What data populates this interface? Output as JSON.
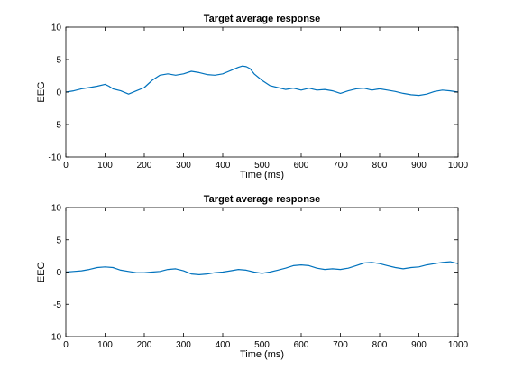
{
  "colors": {
    "series": "#0072bd",
    "axes": "#000000",
    "background": "#ffffff"
  },
  "chart_data": [
    {
      "type": "line",
      "title": "Target average response",
      "xlabel": "Time (ms)",
      "ylabel": "EEG",
      "xlim": [
        0,
        1000
      ],
      "ylim": [
        -10,
        10
      ],
      "xticks": [
        0,
        100,
        200,
        300,
        400,
        500,
        600,
        700,
        800,
        900,
        1000
      ],
      "yticks": [
        -10,
        -5,
        0,
        5,
        10
      ],
      "grid": false,
      "series": [
        {
          "x": [
            0,
            20,
            40,
            60,
            80,
            100,
            110,
            120,
            140,
            160,
            180,
            200,
            220,
            240,
            260,
            280,
            300,
            320,
            340,
            360,
            380,
            400,
            420,
            440,
            450,
            460,
            470,
            480,
            500,
            520,
            540,
            560,
            580,
            600,
            620,
            640,
            660,
            680,
            700,
            720,
            740,
            760,
            780,
            800,
            820,
            840,
            860,
            880,
            900,
            920,
            940,
            960,
            980,
            1000
          ],
          "y": [
            0.0,
            0.2,
            0.5,
            0.7,
            0.9,
            1.2,
            0.9,
            0.5,
            0.2,
            -0.3,
            0.2,
            0.7,
            1.8,
            2.6,
            2.8,
            2.6,
            2.8,
            3.2,
            3.0,
            2.7,
            2.6,
            2.8,
            3.3,
            3.8,
            4.0,
            3.9,
            3.6,
            2.8,
            1.8,
            1.0,
            0.7,
            0.4,
            0.6,
            0.3,
            0.6,
            0.3,
            0.4,
            0.2,
            -0.2,
            0.2,
            0.5,
            0.6,
            0.3,
            0.5,
            0.3,
            0.1,
            -0.2,
            -0.4,
            -0.5,
            -0.3,
            0.1,
            0.3,
            0.2,
            0.0
          ]
        }
      ]
    },
    {
      "type": "line",
      "title": "Target average response",
      "xlabel": "Time (ms)",
      "ylabel": "EEG",
      "xlim": [
        0,
        1000
      ],
      "ylim": [
        -10,
        10
      ],
      "xticks": [
        0,
        100,
        200,
        300,
        400,
        500,
        600,
        700,
        800,
        900,
        1000
      ],
      "yticks": [
        -10,
        -5,
        0,
        5,
        10
      ],
      "grid": false,
      "series": [
        {
          "x": [
            0,
            20,
            40,
            60,
            80,
            100,
            120,
            140,
            160,
            180,
            200,
            220,
            240,
            260,
            280,
            300,
            320,
            340,
            360,
            380,
            400,
            420,
            440,
            460,
            480,
            500,
            520,
            540,
            560,
            580,
            600,
            620,
            640,
            660,
            680,
            700,
            720,
            740,
            760,
            780,
            800,
            820,
            840,
            860,
            880,
            900,
            920,
            940,
            960,
            980,
            1000
          ],
          "y": [
            0.0,
            0.1,
            0.2,
            0.4,
            0.7,
            0.8,
            0.7,
            0.3,
            0.1,
            -0.1,
            -0.1,
            0.0,
            0.1,
            0.4,
            0.5,
            0.2,
            -0.3,
            -0.4,
            -0.3,
            -0.1,
            0.0,
            0.2,
            0.4,
            0.3,
            0.0,
            -0.2,
            0.0,
            0.3,
            0.6,
            1.0,
            1.1,
            1.0,
            0.6,
            0.4,
            0.5,
            0.4,
            0.6,
            1.0,
            1.4,
            1.5,
            1.3,
            1.0,
            0.7,
            0.5,
            0.7,
            0.8,
            1.1,
            1.3,
            1.5,
            1.6,
            1.3
          ]
        }
      ]
    }
  ]
}
